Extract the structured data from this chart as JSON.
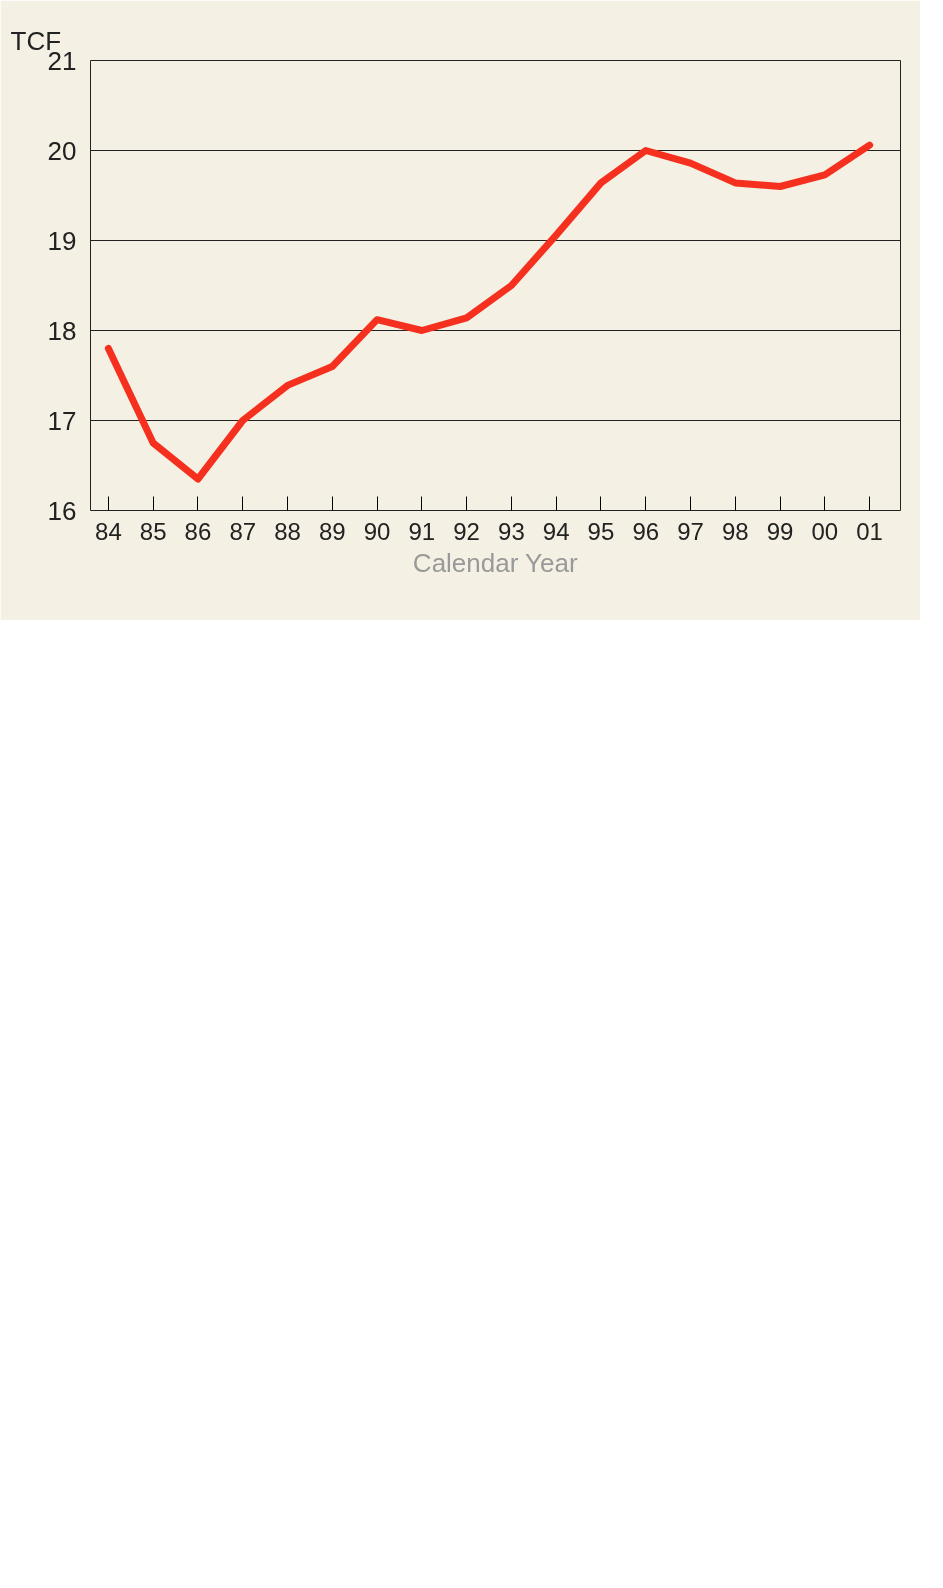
{
  "chart_data": {
    "type": "line",
    "xlabel": "Calendar Year",
    "ylabel": "TCF",
    "categories": [
      "84",
      "85",
      "86",
      "87",
      "88",
      "89",
      "90",
      "91",
      "92",
      "93",
      "94",
      "95",
      "96",
      "97",
      "98",
      "99",
      "00",
      "01"
    ],
    "series": [
      {
        "color": "#f5301e",
        "values": [
          17.8,
          16.75,
          16.35,
          17.0,
          17.39,
          17.6,
          18.12,
          18.0,
          18.14,
          18.5,
          19.06,
          19.64,
          20.0,
          19.86,
          19.64,
          19.6,
          19.73,
          20.06
        ]
      }
    ],
    "ylim": [
      16,
      21
    ],
    "yticks": [
      16,
      17,
      18,
      19,
      20,
      21
    ],
    "grid": "y",
    "marker": "none",
    "line_style": "solid"
  }
}
